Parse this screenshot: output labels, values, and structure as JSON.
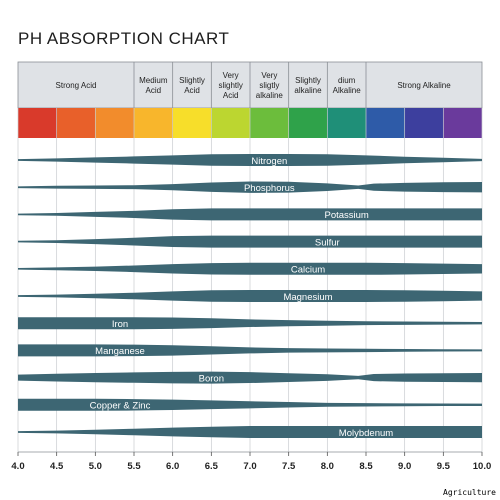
{
  "title": "PH ABSORPTION CHART",
  "watermark": "Agriculture",
  "chart_data": {
    "type": "area",
    "title": "PH ABSORPTION CHART",
    "x_range": [
      4.0,
      10.0
    ],
    "x_ticks": [
      "4.0",
      "4.5",
      "5.0",
      "5.5",
      "6.0",
      "6.5",
      "7.0",
      "7.5",
      "8.0",
      "8.5",
      "9.0",
      "9.5",
      "10.0"
    ],
    "acidity_bands": [
      {
        "label": "Strong Acid",
        "from": 4.0,
        "to": 5.5
      },
      {
        "label": "Medium Acid",
        "from": 5.5,
        "to": 6.0
      },
      {
        "label": "Slightly Acid",
        "from": 6.0,
        "to": 6.5
      },
      {
        "label": "Very slightly Acid",
        "from": 6.5,
        "to": 7.0
      },
      {
        "label": "Very sligtly alkaline",
        "from": 7.0,
        "to": 7.5
      },
      {
        "label": "Slightly alkaline",
        "from": 7.5,
        "to": 8.0
      },
      {
        "label": "dium Alkaline",
        "from": 8.0,
        "to": 8.5
      },
      {
        "label": "Strong Alkaline",
        "from": 8.5,
        "to": 10.0
      }
    ],
    "color_scale": [
      {
        "from": 4.0,
        "to": 4.5,
        "color": "#d93a2b"
      },
      {
        "from": 4.5,
        "to": 5.0,
        "color": "#e8602a"
      },
      {
        "from": 5.0,
        "to": 5.5,
        "color": "#f28c2c"
      },
      {
        "from": 5.5,
        "to": 6.0,
        "color": "#f8b62c"
      },
      {
        "from": 6.0,
        "to": 6.5,
        "color": "#f7de2a"
      },
      {
        "from": 6.5,
        "to": 7.0,
        "color": "#bcd630"
      },
      {
        "from": 7.0,
        "to": 7.5,
        "color": "#6cbd3c"
      },
      {
        "from": 7.5,
        "to": 8.0,
        "color": "#2fa24a"
      },
      {
        "from": 8.0,
        "to": 8.5,
        "color": "#1f8f78"
      },
      {
        "from": 8.5,
        "to": 9.0,
        "color": "#2e5ba8"
      },
      {
        "from": 9.0,
        "to": 9.5,
        "color": "#3d3f9e"
      },
      {
        "from": 9.5,
        "to": 10.0,
        "color": "#6a3a9c"
      }
    ],
    "band_color": "#3d6673",
    "series": [
      {
        "name": "Nitrogen",
        "ph": [
          4.0,
          4.5,
          5.0,
          5.5,
          6.0,
          6.5,
          7.0,
          7.5,
          8.0,
          8.5,
          9.0,
          9.5,
          10.0
        ],
        "availability": [
          0.04,
          0.2,
          0.38,
          0.55,
          0.75,
          0.95,
          1.0,
          1.0,
          0.95,
          0.75,
          0.5,
          0.3,
          0.1
        ]
      },
      {
        "name": "Phosphorus",
        "ph": [
          4.0,
          4.5,
          5.0,
          5.5,
          6.0,
          6.5,
          7.0,
          7.5,
          8.0,
          8.4,
          8.6,
          9.0,
          9.5,
          10.0
        ],
        "availability": [
          0.05,
          0.15,
          0.2,
          0.25,
          0.45,
          0.75,
          0.95,
          0.9,
          0.6,
          0.2,
          0.55,
          0.7,
          0.8,
          0.85
        ]
      },
      {
        "name": "Potassium",
        "ph": [
          4.0,
          4.5,
          5.0,
          5.5,
          6.0,
          6.5,
          7.0,
          7.5,
          8.0,
          8.5,
          9.0,
          9.5,
          10.0
        ],
        "availability": [
          0.04,
          0.15,
          0.35,
          0.55,
          0.85,
          1.0,
          1.0,
          1.0,
          1.0,
          1.0,
          1.0,
          1.0,
          1.0
        ]
      },
      {
        "name": "Sulfur",
        "ph": [
          4.0,
          4.5,
          5.0,
          5.5,
          6.0,
          6.5,
          7.0,
          7.5,
          8.0,
          8.5,
          9.0,
          9.5,
          10.0
        ],
        "availability": [
          0.04,
          0.15,
          0.35,
          0.6,
          0.9,
          1.0,
          1.0,
          1.0,
          1.0,
          1.0,
          1.0,
          1.0,
          1.0
        ]
      },
      {
        "name": "Calcium",
        "ph": [
          4.0,
          4.5,
          5.0,
          5.5,
          6.0,
          6.5,
          7.0,
          7.5,
          8.0,
          8.5,
          9.0,
          9.5,
          10.0
        ],
        "availability": [
          0.04,
          0.15,
          0.3,
          0.5,
          0.75,
          0.95,
          1.0,
          1.0,
          1.0,
          1.0,
          0.95,
          0.85,
          0.75
        ]
      },
      {
        "name": "Magnesium",
        "ph": [
          4.0,
          4.5,
          5.0,
          5.5,
          6.0,
          6.5,
          7.0,
          7.5,
          8.0,
          8.5,
          9.0,
          9.5,
          10.0
        ],
        "availability": [
          0.04,
          0.15,
          0.3,
          0.5,
          0.75,
          0.95,
          1.0,
          1.0,
          1.0,
          1.0,
          0.95,
          0.85,
          0.75
        ]
      },
      {
        "name": "Iron",
        "ph": [
          4.0,
          4.5,
          5.0,
          5.5,
          6.0,
          6.5,
          7.0,
          7.5,
          8.0,
          8.5,
          9.0,
          9.5,
          10.0
        ],
        "availability": [
          1.0,
          1.0,
          1.0,
          1.0,
          0.95,
          0.8,
          0.6,
          0.45,
          0.35,
          0.25,
          0.2,
          0.15,
          0.1
        ]
      },
      {
        "name": "Manganese",
        "ph": [
          4.0,
          4.5,
          5.0,
          5.5,
          6.0,
          6.5,
          7.0,
          7.5,
          8.0,
          8.5,
          9.0,
          9.5,
          10.0
        ],
        "availability": [
          1.0,
          1.0,
          1.0,
          0.95,
          0.85,
          0.65,
          0.45,
          0.3,
          0.25,
          0.2,
          0.15,
          0.1,
          0.08
        ]
      },
      {
        "name": "Boron",
        "ph": [
          4.0,
          4.5,
          5.0,
          5.5,
          6.0,
          6.5,
          7.0,
          7.5,
          8.0,
          8.4,
          8.6,
          9.0,
          9.5,
          10.0
        ],
        "availability": [
          0.45,
          0.6,
          0.75,
          0.85,
          0.95,
          1.0,
          0.9,
          0.7,
          0.5,
          0.2,
          0.55,
          0.65,
          0.7,
          0.75
        ]
      },
      {
        "name": "Copper & Zinc",
        "ph": [
          4.0,
          4.5,
          5.0,
          5.5,
          6.0,
          6.5,
          7.0,
          7.5,
          8.0,
          8.5,
          9.0,
          9.5,
          10.0
        ],
        "availability": [
          1.0,
          1.0,
          1.0,
          0.95,
          0.85,
          0.7,
          0.55,
          0.4,
          0.25,
          0.2,
          0.15,
          0.12,
          0.1
        ]
      },
      {
        "name": "Molybdenum",
        "ph": [
          4.0,
          4.5,
          5.0,
          5.5,
          6.0,
          6.5,
          7.0,
          7.5,
          8.0,
          8.5,
          9.0,
          9.5,
          10.0
        ],
        "availability": [
          0.04,
          0.15,
          0.3,
          0.5,
          0.7,
          0.85,
          1.0,
          1.0,
          1.0,
          1.0,
          1.0,
          1.0,
          1.0
        ]
      }
    ]
  }
}
